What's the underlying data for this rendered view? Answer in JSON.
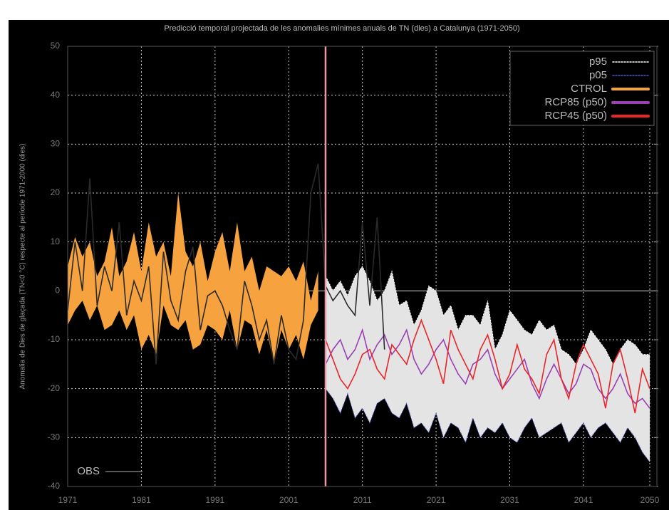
{
  "chart_data": {
    "type": "line",
    "title": "Predicció temporal projectada de les anomalies mínimes anuals de TN (dies) a Catalunya (1971-2050)",
    "y_label": "Anomalia de Dies de glaçada (TN<0 °C) respecte al període 1971-2000 (dies)",
    "xlim": [
      1971,
      2050
    ],
    "xticks": [
      1971,
      1981,
      1991,
      2001,
      2011,
      2021,
      2031,
      2041,
      2050
    ],
    "ylim": [
      -40,
      50
    ],
    "yticks": [
      -40,
      -30,
      -20,
      -10,
      0,
      10,
      20,
      30,
      40,
      50
    ],
    "grid": true,
    "vline": 2006,
    "vline_color": "#e89aa8",
    "band_color": "#e4e4e4",
    "series": [
      {
        "name": "p95",
        "color": "#ffffff",
        "dash": "2,2",
        "x": [
          2006,
          2007,
          2008,
          2009,
          2010,
          2011,
          2012,
          2013,
          2014,
          2015,
          2016,
          2017,
          2018,
          2019,
          2020,
          2021,
          2022,
          2023,
          2024,
          2025,
          2026,
          2027,
          2028,
          2029,
          2030,
          2031,
          2032,
          2033,
          2034,
          2035,
          2036,
          2037,
          2038,
          2039,
          2040,
          2041,
          2042,
          2043,
          2044,
          2045,
          2046,
          2047,
          2048,
          2049,
          2050
        ],
        "values": [
          3,
          0,
          2,
          -1,
          3,
          5,
          2,
          -2,
          0,
          4,
          -3,
          -2,
          -7,
          -4,
          1,
          0,
          -5,
          -3,
          -8,
          -5,
          -5,
          -7,
          -2,
          -12,
          -9,
          -4,
          -6,
          -8,
          -9,
          -6,
          -8,
          -7,
          -12,
          -13,
          -15,
          -12,
          -8,
          -10,
          -12,
          -15,
          -12,
          -10,
          -11,
          -13,
          -13
        ]
      },
      {
        "name": "p05",
        "color": "#4a56c8",
        "dash": "2,2",
        "x": [
          2006,
          2007,
          2008,
          2009,
          2010,
          2011,
          2012,
          2013,
          2014,
          2015,
          2016,
          2017,
          2018,
          2019,
          2020,
          2021,
          2022,
          2023,
          2024,
          2025,
          2026,
          2027,
          2028,
          2029,
          2030,
          2031,
          2032,
          2033,
          2034,
          2035,
          2036,
          2037,
          2038,
          2039,
          2040,
          2041,
          2042,
          2043,
          2044,
          2045,
          2046,
          2047,
          2048,
          2049,
          2050
        ],
        "values": [
          -20,
          -22,
          -25,
          -21,
          -26,
          -24,
          -27,
          -23,
          -22,
          -25,
          -26,
          -23,
          -28,
          -27,
          -29,
          -25,
          -30,
          -27,
          -28,
          -31,
          -26,
          -30,
          -28,
          -29,
          -27,
          -30,
          -31,
          -28,
          -26,
          -30,
          -29,
          -28,
          -27,
          -31,
          -29,
          -27,
          -30,
          -28,
          -27,
          -29,
          -31,
          -28,
          -30,
          -33,
          -35
        ]
      },
      {
        "name": "CTROL",
        "color": "#f6a23e",
        "x": [
          1971,
          1972,
          1973,
          1974,
          1975,
          1976,
          1977,
          1978,
          1979,
          1980,
          1981,
          1982,
          1983,
          1984,
          1985,
          1986,
          1987,
          1988,
          1989,
          1990,
          1991,
          1992,
          1993,
          1994,
          1995,
          1996,
          1997,
          1998,
          1999,
          2000,
          2001,
          2002,
          2003,
          2004,
          2005
        ],
        "high": [
          5,
          11,
          7,
          10,
          3,
          6,
          13,
          3,
          6,
          12,
          4,
          14,
          7,
          10,
          3,
          20,
          8,
          5,
          10,
          2,
          8,
          12,
          4,
          14,
          4,
          7,
          0,
          5,
          4,
          3,
          5,
          2,
          6,
          -2,
          4
        ],
        "low": [
          -7,
          -4,
          -2,
          -6,
          -3,
          -8,
          -7,
          -4,
          -8,
          -5,
          -12,
          -9,
          -13,
          -3,
          -7,
          -8,
          -6,
          -12,
          -11,
          -7,
          -8,
          -10,
          -4,
          -12,
          -6,
          -7,
          -13,
          -8,
          -15,
          -8,
          -12,
          -9,
          -14,
          -7,
          -4
        ]
      },
      {
        "name": "RCP85 (p50)",
        "color": "#9b3fb5",
        "x": [
          2006,
          2007,
          2008,
          2009,
          2010,
          2011,
          2012,
          2013,
          2014,
          2015,
          2016,
          2017,
          2018,
          2019,
          2020,
          2021,
          2022,
          2023,
          2024,
          2025,
          2026,
          2027,
          2028,
          2029,
          2030,
          2031,
          2032,
          2033,
          2034,
          2035,
          2036,
          2037,
          2038,
          2039,
          2040,
          2041,
          2042,
          2043,
          2044,
          2045,
          2046,
          2047,
          2048,
          2049,
          2050
        ],
        "values": [
          -15,
          -12,
          -10,
          -14,
          -12,
          -8,
          -14,
          -11,
          -9,
          -13,
          -11,
          -8,
          -14,
          -17,
          -15,
          -12,
          -10,
          -14,
          -17,
          -19,
          -15,
          -14,
          -12,
          -17,
          -20,
          -18,
          -16,
          -14,
          -19,
          -22,
          -18,
          -15,
          -18,
          -21,
          -19,
          -15,
          -16,
          -20,
          -22,
          -20,
          -17,
          -21,
          -23,
          -22,
          -24
        ]
      },
      {
        "name": "RCP45 (p50)",
        "color": "#e8262a",
        "x": [
          2006,
          2007,
          2008,
          2009,
          2010,
          2011,
          2012,
          2013,
          2014,
          2015,
          2016,
          2017,
          2018,
          2019,
          2020,
          2021,
          2022,
          2023,
          2024,
          2025,
          2026,
          2027,
          2028,
          2029,
          2030,
          2031,
          2032,
          2033,
          2034,
          2035,
          2036,
          2037,
          2038,
          2039,
          2040,
          2041,
          2042,
          2043,
          2044,
          2045,
          2046,
          2047,
          2048,
          2049,
          2050
        ],
        "values": [
          -10,
          -14,
          -18,
          -20,
          -17,
          -13,
          -12,
          -16,
          -18,
          -11,
          -13,
          -15,
          -10,
          -6,
          -10,
          -14,
          -19,
          -8,
          -12,
          -15,
          -18,
          -12,
          -9,
          -14,
          -20,
          -17,
          -11,
          -16,
          -18,
          -21,
          -13,
          -10,
          -18,
          -22,
          -15,
          -11,
          -14,
          -17,
          -24,
          -15,
          -12,
          -18,
          -25,
          -16,
          -20
        ]
      },
      {
        "name": "OBS",
        "color": "#2a2a2a",
        "x": [
          1971,
          1972,
          1973,
          1974,
          1975,
          1976,
          1977,
          1978,
          1979,
          1980,
          1981,
          1982,
          1983,
          1984,
          1985,
          1986,
          1987,
          1988,
          1989,
          1990,
          1991,
          1992,
          1993,
          1994,
          1995,
          1996,
          1997,
          1998,
          1999,
          2000,
          2001,
          2002,
          2003,
          2004,
          2005,
          2006,
          2007,
          2008,
          2009,
          2010,
          2011,
          2012,
          2013,
          2014
        ],
        "values": [
          -4,
          10,
          0,
          23,
          -3,
          5,
          0,
          14,
          -5,
          2,
          -2,
          5,
          -15,
          8,
          -2,
          -6,
          4,
          9,
          -8,
          -1,
          0,
          -3,
          -8,
          -12,
          2,
          -3,
          -10,
          -6,
          -15,
          -5,
          -12,
          -14,
          -6,
          20,
          26,
          1,
          -2,
          0,
          -3,
          -5,
          14,
          -3,
          15,
          -12
        ]
      }
    ]
  }
}
